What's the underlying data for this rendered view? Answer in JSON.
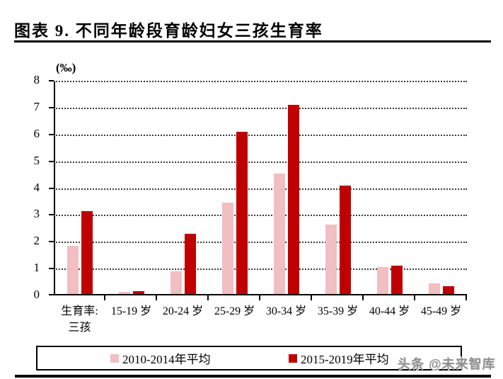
{
  "figure": {
    "title": "图表 9. 不同年龄段育龄妇女三孩生育率",
    "watermark": "头条 @未来智库"
  },
  "chart_data": {
    "type": "bar",
    "title": "图表 9. 不同年龄段育龄妇女三孩生育率",
    "unit_label": "(‰)",
    "ylabel": "(‰)",
    "xlabel": "",
    "categories": [
      "生育率:\n三孩",
      "15-19 岁",
      "20-24 岁",
      "25-29 岁",
      "30-34 岁",
      "35-39 岁",
      "40-44 岁",
      "45-49 岁"
    ],
    "series": [
      {
        "name": "2010-2014年平均",
        "color": "#F1BEC1",
        "values": [
          1.8,
          0.07,
          0.85,
          3.4,
          4.5,
          2.6,
          1.0,
          0.4
        ]
      },
      {
        "name": "2015-2019年平均",
        "color": "#C00000",
        "values": [
          3.1,
          0.1,
          2.25,
          6.05,
          7.05,
          4.05,
          1.05,
          0.3
        ]
      }
    ],
    "ylim": [
      0,
      8
    ],
    "yticks": [
      0,
      1,
      2,
      3,
      4,
      5,
      6,
      7,
      8
    ],
    "grid": "horizontal-dotted",
    "legend_position": "bottom-boxed"
  }
}
